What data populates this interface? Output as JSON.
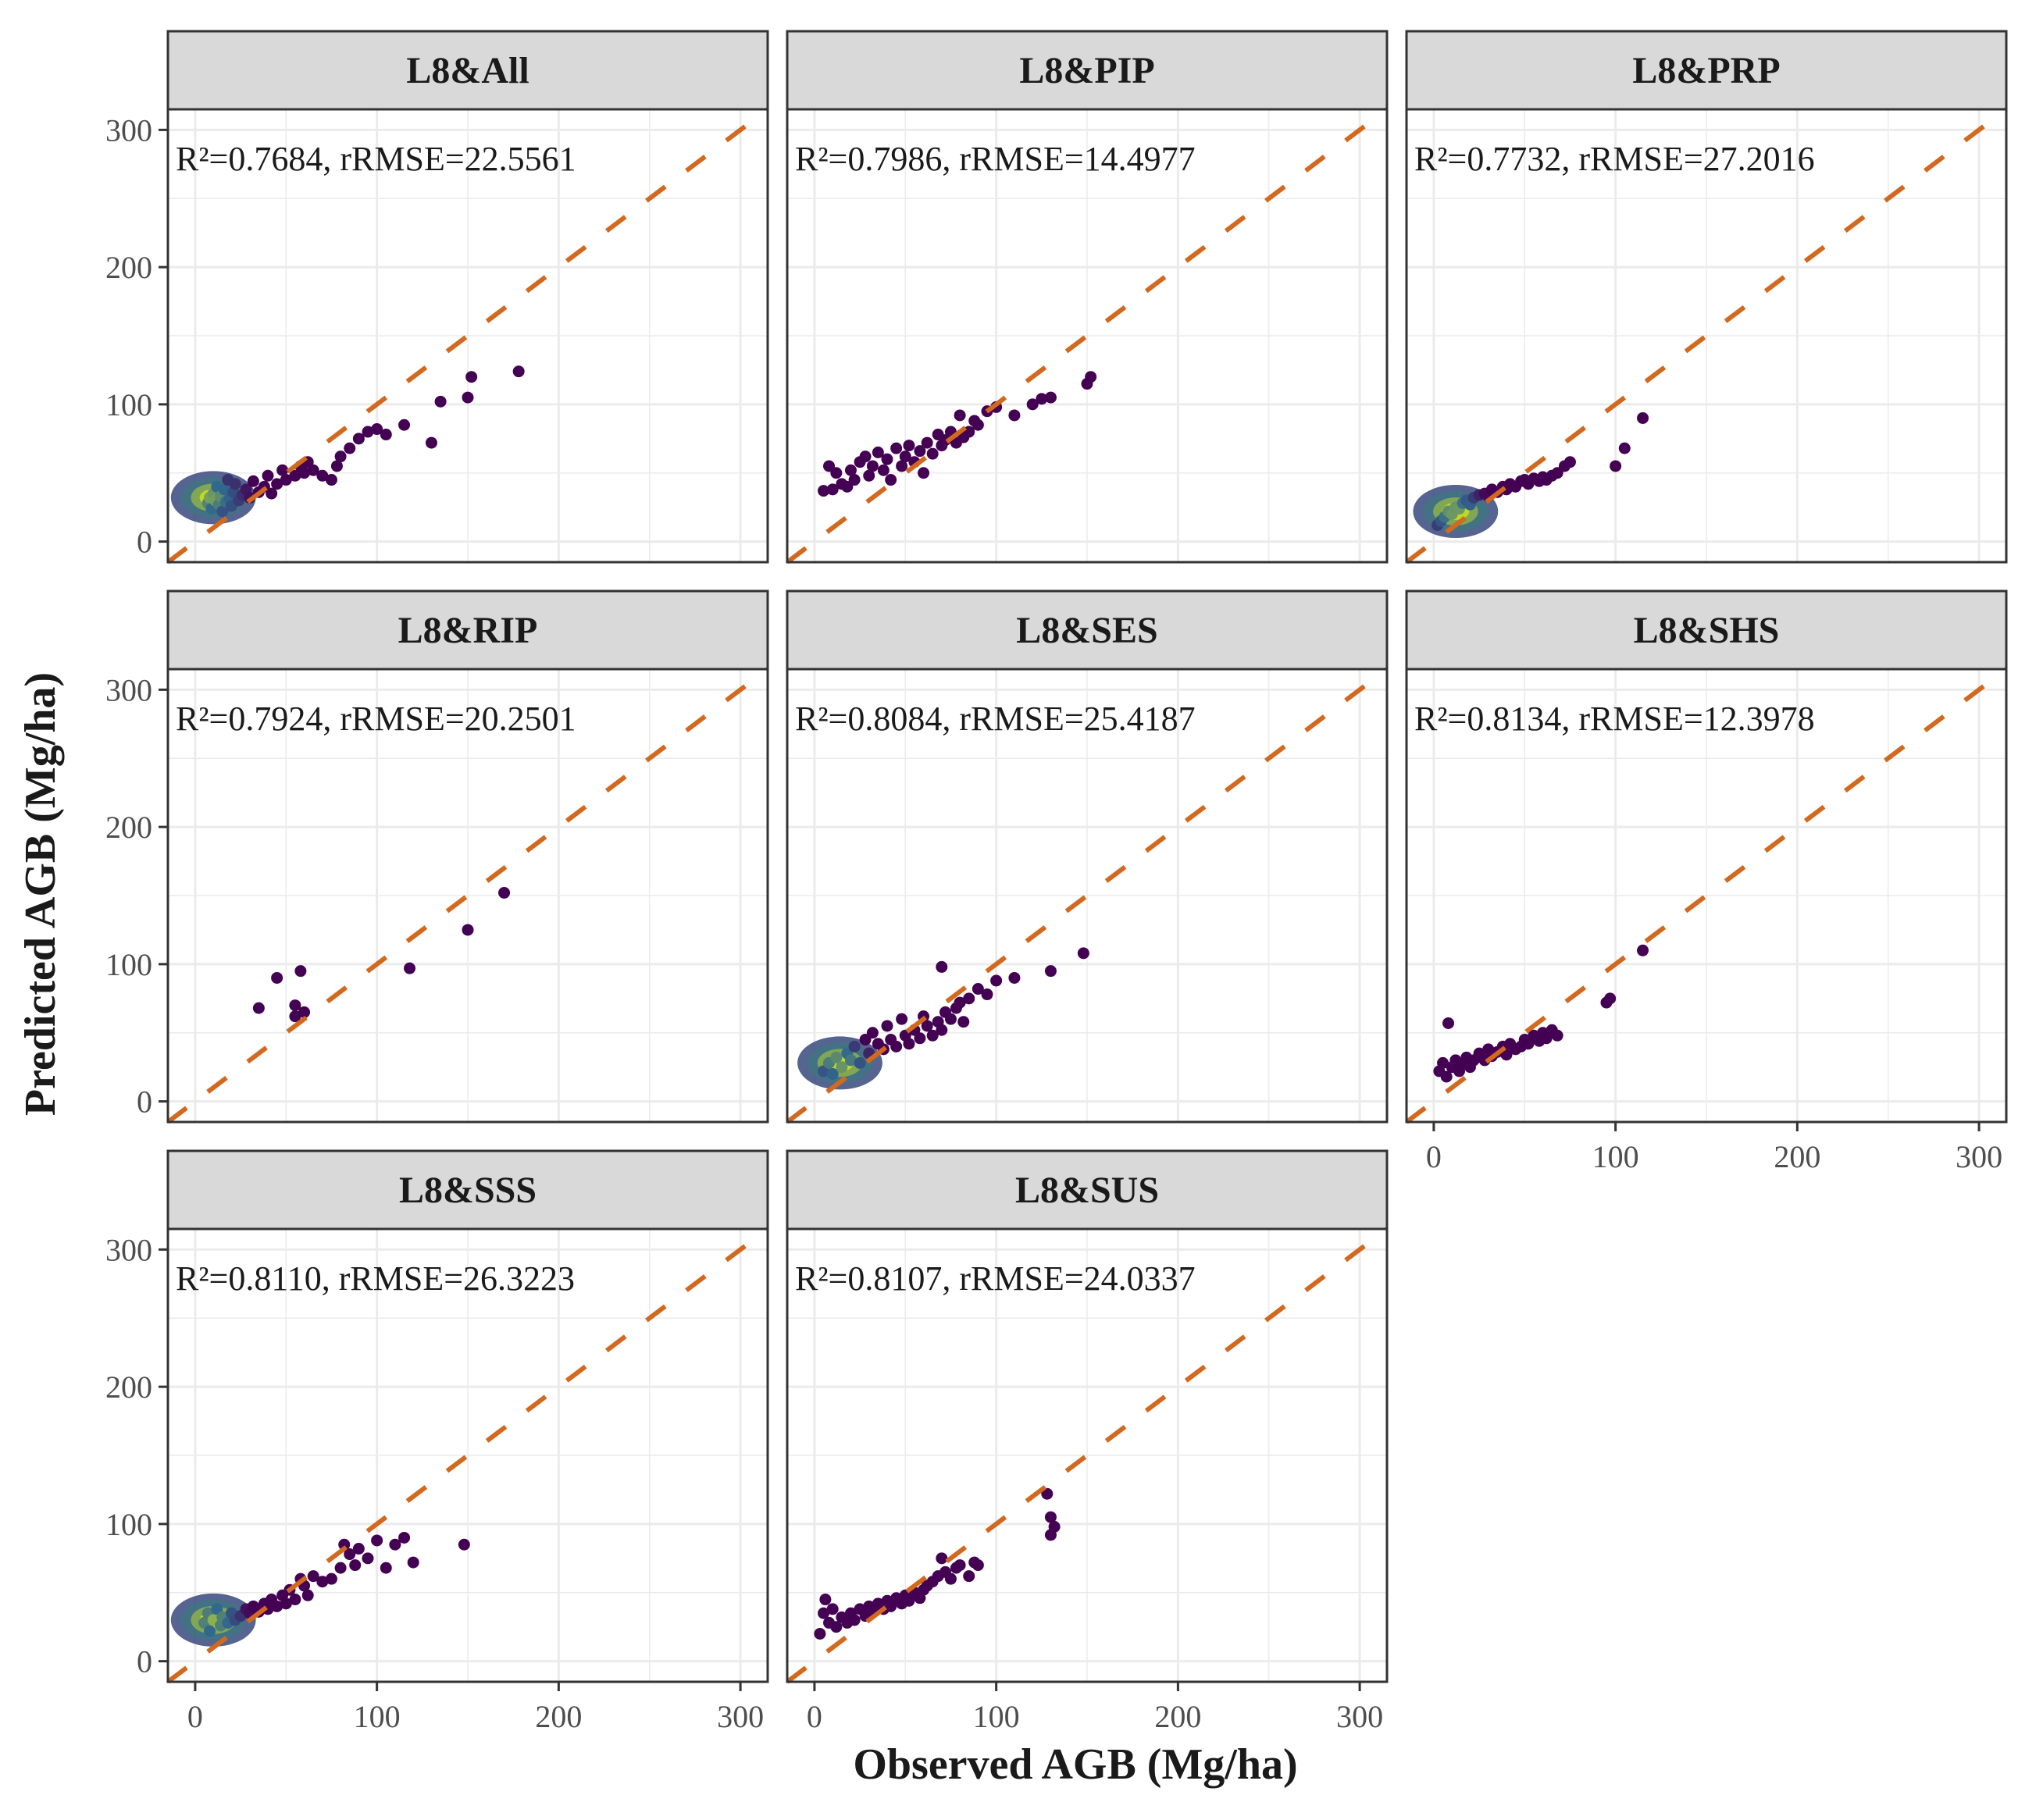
{
  "figure": {
    "xlabel": "Observed AGB (Mg/ha)",
    "ylabel": "Predicted AGB (Mg/ha)"
  },
  "colors": {
    "strip_fill": "#d9d9d9",
    "panel_border": "#333333",
    "grid": "#ebebeb",
    "reference_line": "#d2691e",
    "point_low_density": "#440154",
    "point_mid_density": "#31688e",
    "point_high_density": "#c8e020"
  },
  "chart_data": {
    "type": "scatter",
    "facet_layout": "3 columns by 3 rows",
    "x_range": [
      -15,
      315
    ],
    "y_range": [
      -15,
      315
    ],
    "x_ticks": [
      0,
      100,
      200,
      300
    ],
    "y_ticks": [
      0,
      100,
      200,
      300
    ],
    "grid": true,
    "reference_line": "1:1 dashed",
    "panels": [
      {
        "title": "L8&All",
        "annotation": "R²=0.7684, rRMSE=22.5561",
        "points": [
          [
            7,
            28
          ],
          [
            8,
            32
          ],
          [
            9,
            24
          ],
          [
            10,
            35
          ],
          [
            11,
            30
          ],
          [
            12,
            40
          ],
          [
            13,
            27
          ],
          [
            14,
            33
          ],
          [
            15,
            22
          ],
          [
            16,
            38
          ],
          [
            17,
            29
          ],
          [
            18,
            45
          ],
          [
            19,
            31
          ],
          [
            20,
            26
          ],
          [
            21,
            36
          ],
          [
            22,
            42
          ],
          [
            24,
            30
          ],
          [
            26,
            34
          ],
          [
            28,
            38
          ],
          [
            30,
            32
          ],
          [
            32,
            44
          ],
          [
            35,
            36
          ],
          [
            38,
            40
          ],
          [
            40,
            48
          ],
          [
            42,
            35
          ],
          [
            45,
            42
          ],
          [
            48,
            52
          ],
          [
            50,
            45
          ],
          [
            55,
            48
          ],
          [
            58,
            55
          ],
          [
            60,
            50
          ],
          [
            62,
            58
          ],
          [
            65,
            52
          ],
          [
            70,
            48
          ],
          [
            75,
            45
          ],
          [
            78,
            55
          ],
          [
            80,
            62
          ],
          [
            85,
            68
          ],
          [
            90,
            75
          ],
          [
            95,
            80
          ],
          [
            100,
            82
          ],
          [
            105,
            78
          ],
          [
            115,
            85
          ],
          [
            130,
            72
          ],
          [
            135,
            102
          ],
          [
            150,
            105
          ],
          [
            152,
            120
          ],
          [
            178,
            124
          ]
        ],
        "dense_cluster": [
          10,
          32
        ]
      },
      {
        "title": "L8&PIP",
        "annotation": "R²=0.7986, rRMSE=14.4977",
        "points": [
          [
            5,
            37
          ],
          [
            8,
            55
          ],
          [
            10,
            38
          ],
          [
            12,
            50
          ],
          [
            15,
            42
          ],
          [
            18,
            40
          ],
          [
            20,
            52
          ],
          [
            22,
            45
          ],
          [
            25,
            58
          ],
          [
            28,
            62
          ],
          [
            30,
            48
          ],
          [
            32,
            55
          ],
          [
            35,
            65
          ],
          [
            38,
            52
          ],
          [
            40,
            60
          ],
          [
            42,
            45
          ],
          [
            45,
            68
          ],
          [
            48,
            55
          ],
          [
            50,
            62
          ],
          [
            52,
            70
          ],
          [
            55,
            58
          ],
          [
            58,
            66
          ],
          [
            60,
            50
          ],
          [
            62,
            72
          ],
          [
            65,
            64
          ],
          [
            68,
            78
          ],
          [
            70,
            70
          ],
          [
            72,
            74
          ],
          [
            75,
            80
          ],
          [
            78,
            72
          ],
          [
            80,
            92
          ],
          [
            82,
            76
          ],
          [
            85,
            80
          ],
          [
            88,
            88
          ],
          [
            90,
            85
          ],
          [
            95,
            95
          ],
          [
            100,
            98
          ],
          [
            110,
            92
          ],
          [
            120,
            100
          ],
          [
            125,
            104
          ],
          [
            130,
            105
          ],
          [
            150,
            115
          ],
          [
            152,
            120
          ]
        ],
        "dense_cluster": null
      },
      {
        "title": "L8&PRP",
        "annotation": "R²=0.7732, rRMSE=27.2016",
        "points": [
          [
            2,
            12
          ],
          [
            4,
            15
          ],
          [
            6,
            18
          ],
          [
            8,
            22
          ],
          [
            10,
            20
          ],
          [
            12,
            25
          ],
          [
            14,
            24
          ],
          [
            16,
            28
          ],
          [
            18,
            30
          ],
          [
            20,
            27
          ],
          [
            22,
            32
          ],
          [
            25,
            34
          ],
          [
            28,
            35
          ],
          [
            30,
            33
          ],
          [
            32,
            38
          ],
          [
            35,
            36
          ],
          [
            38,
            40
          ],
          [
            40,
            38
          ],
          [
            42,
            42
          ],
          [
            45,
            40
          ],
          [
            48,
            44
          ],
          [
            50,
            45
          ],
          [
            52,
            42
          ],
          [
            55,
            46
          ],
          [
            58,
            44
          ],
          [
            60,
            47
          ],
          [
            62,
            45
          ],
          [
            65,
            48
          ],
          [
            68,
            50
          ],
          [
            72,
            55
          ],
          [
            75,
            58
          ],
          [
            100,
            55
          ],
          [
            105,
            68
          ],
          [
            115,
            90
          ]
        ],
        "dense_cluster": [
          12,
          22
        ]
      },
      {
        "title": "L8&RIP",
        "annotation": "R²=0.7924, rRMSE=20.2501",
        "points": [
          [
            35,
            68
          ],
          [
            45,
            90
          ],
          [
            55,
            62
          ],
          [
            55,
            70
          ],
          [
            58,
            95
          ],
          [
            60,
            65
          ],
          [
            118,
            97
          ],
          [
            150,
            125
          ],
          [
            170,
            152
          ]
        ],
        "dense_cluster": null
      },
      {
        "title": "L8&SES",
        "annotation": "R²=0.8084, rRMSE=25.4187",
        "points": [
          [
            5,
            22
          ],
          [
            8,
            28
          ],
          [
            10,
            20
          ],
          [
            12,
            32
          ],
          [
            15,
            25
          ],
          [
            18,
            35
          ],
          [
            20,
            30
          ],
          [
            22,
            40
          ],
          [
            25,
            28
          ],
          [
            28,
            45
          ],
          [
            30,
            35
          ],
          [
            32,
            50
          ],
          [
            35,
            42
          ],
          [
            38,
            38
          ],
          [
            40,
            55
          ],
          [
            42,
            45
          ],
          [
            45,
            40
          ],
          [
            48,
            60
          ],
          [
            50,
            48
          ],
          [
            52,
            42
          ],
          [
            55,
            52
          ],
          [
            58,
            46
          ],
          [
            60,
            62
          ],
          [
            62,
            55
          ],
          [
            65,
            48
          ],
          [
            68,
            58
          ],
          [
            70,
            52
          ],
          [
            72,
            65
          ],
          [
            75,
            60
          ],
          [
            78,
            68
          ],
          [
            80,
            72
          ],
          [
            82,
            58
          ],
          [
            85,
            75
          ],
          [
            90,
            82
          ],
          [
            95,
            78
          ],
          [
            100,
            88
          ],
          [
            110,
            90
          ],
          [
            130,
            95
          ],
          [
            148,
            108
          ],
          [
            70,
            98
          ]
        ],
        "dense_cluster": [
          14,
          28
        ]
      },
      {
        "title": "L8&SHS",
        "annotation": "R²=0.8134, rRMSE=12.3978",
        "points": [
          [
            3,
            22
          ],
          [
            5,
            28
          ],
          [
            7,
            18
          ],
          [
            8,
            57
          ],
          [
            10,
            25
          ],
          [
            12,
            30
          ],
          [
            14,
            22
          ],
          [
            16,
            28
          ],
          [
            18,
            32
          ],
          [
            20,
            25
          ],
          [
            22,
            30
          ],
          [
            25,
            35
          ],
          [
            28,
            30
          ],
          [
            30,
            38
          ],
          [
            32,
            33
          ],
          [
            35,
            36
          ],
          [
            38,
            40
          ],
          [
            40,
            34
          ],
          [
            42,
            42
          ],
          [
            45,
            38
          ],
          [
            48,
            40
          ],
          [
            50,
            45
          ],
          [
            52,
            42
          ],
          [
            55,
            48
          ],
          [
            58,
            44
          ],
          [
            60,
            50
          ],
          [
            62,
            46
          ],
          [
            65,
            52
          ],
          [
            68,
            48
          ],
          [
            95,
            72
          ],
          [
            97,
            75
          ],
          [
            115,
            110
          ]
        ],
        "dense_cluster": null
      },
      {
        "title": "L8&SSS",
        "annotation": "R²=0.8110, rRMSE=26.3223",
        "points": [
          [
            5,
            28
          ],
          [
            7,
            35
          ],
          [
            8,
            22
          ],
          [
            10,
            30
          ],
          [
            12,
            38
          ],
          [
            14,
            26
          ],
          [
            15,
            32
          ],
          [
            18,
            28
          ],
          [
            20,
            35
          ],
          [
            22,
            30
          ],
          [
            25,
            33
          ],
          [
            28,
            38
          ],
          [
            30,
            35
          ],
          [
            32,
            40
          ],
          [
            35,
            36
          ],
          [
            38,
            42
          ],
          [
            40,
            38
          ],
          [
            42,
            45
          ],
          [
            45,
            40
          ],
          [
            48,
            48
          ],
          [
            50,
            42
          ],
          [
            52,
            52
          ],
          [
            55,
            45
          ],
          [
            58,
            60
          ],
          [
            60,
            55
          ],
          [
            62,
            48
          ],
          [
            65,
            62
          ],
          [
            70,
            58
          ],
          [
            75,
            60
          ],
          [
            80,
            68
          ],
          [
            82,
            85
          ],
          [
            85,
            78
          ],
          [
            88,
            70
          ],
          [
            90,
            82
          ],
          [
            95,
            75
          ],
          [
            100,
            88
          ],
          [
            105,
            68
          ],
          [
            110,
            85
          ],
          [
            115,
            90
          ],
          [
            120,
            72
          ],
          [
            148,
            85
          ]
        ],
        "dense_cluster": [
          10,
          30
        ]
      },
      {
        "title": "L8&SUS",
        "annotation": "R²=0.8107, rRMSE=24.0337",
        "points": [
          [
            3,
            20
          ],
          [
            5,
            35
          ],
          [
            6,
            45
          ],
          [
            8,
            28
          ],
          [
            10,
            38
          ],
          [
            12,
            25
          ],
          [
            15,
            32
          ],
          [
            18,
            28
          ],
          [
            20,
            35
          ],
          [
            22,
            30
          ],
          [
            25,
            38
          ],
          [
            28,
            33
          ],
          [
            30,
            40
          ],
          [
            32,
            36
          ],
          [
            35,
            42
          ],
          [
            38,
            38
          ],
          [
            40,
            44
          ],
          [
            42,
            40
          ],
          [
            45,
            46
          ],
          [
            48,
            42
          ],
          [
            50,
            48
          ],
          [
            52,
            44
          ],
          [
            55,
            50
          ],
          [
            58,
            46
          ],
          [
            60,
            52
          ],
          [
            62,
            55
          ],
          [
            65,
            58
          ],
          [
            68,
            62
          ],
          [
            70,
            75
          ],
          [
            72,
            65
          ],
          [
            75,
            60
          ],
          [
            78,
            68
          ],
          [
            80,
            70
          ],
          [
            85,
            62
          ],
          [
            88,
            72
          ],
          [
            90,
            70
          ],
          [
            128,
            122
          ],
          [
            130,
            105
          ],
          [
            132,
            98
          ],
          [
            130,
            92
          ]
        ],
        "dense_cluster": null
      }
    ]
  }
}
